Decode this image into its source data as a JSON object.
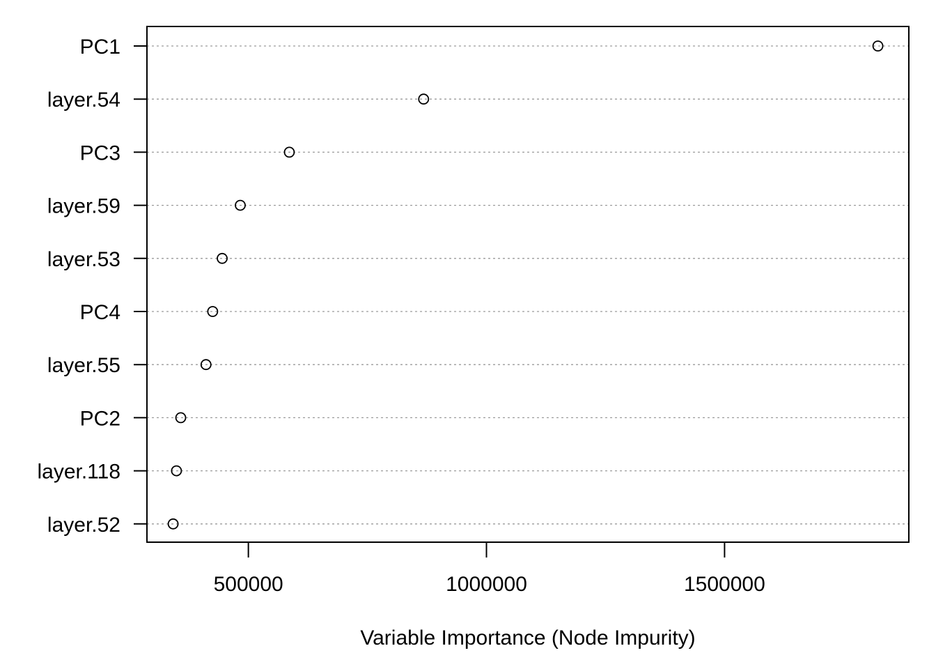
{
  "chart_data": {
    "type": "scatter",
    "subtype": "dotchart",
    "title": "",
    "xlabel": "Variable Importance (Node Impurity)",
    "ylabel": "",
    "categories": [
      "PC1",
      "layer.54",
      "PC3",
      "layer.59",
      "layer.53",
      "PC4",
      "layer.55",
      "PC2",
      "layer.118",
      "layer.52"
    ],
    "values": [
      1822000,
      868000,
      586000,
      483000,
      445000,
      425000,
      411000,
      358000,
      349000,
      342000
    ],
    "xlim": [
      287000,
      1887000
    ],
    "xticks": [
      500000,
      1000000,
      1500000
    ],
    "xtick_labels": [
      "500000",
      "1000000",
      "1500000"
    ],
    "grid": "horizontal dotted lines per category",
    "legend": "none",
    "colors": {
      "point": "#000000",
      "gridline": "#9a9a9a",
      "frame": "#000000"
    }
  }
}
